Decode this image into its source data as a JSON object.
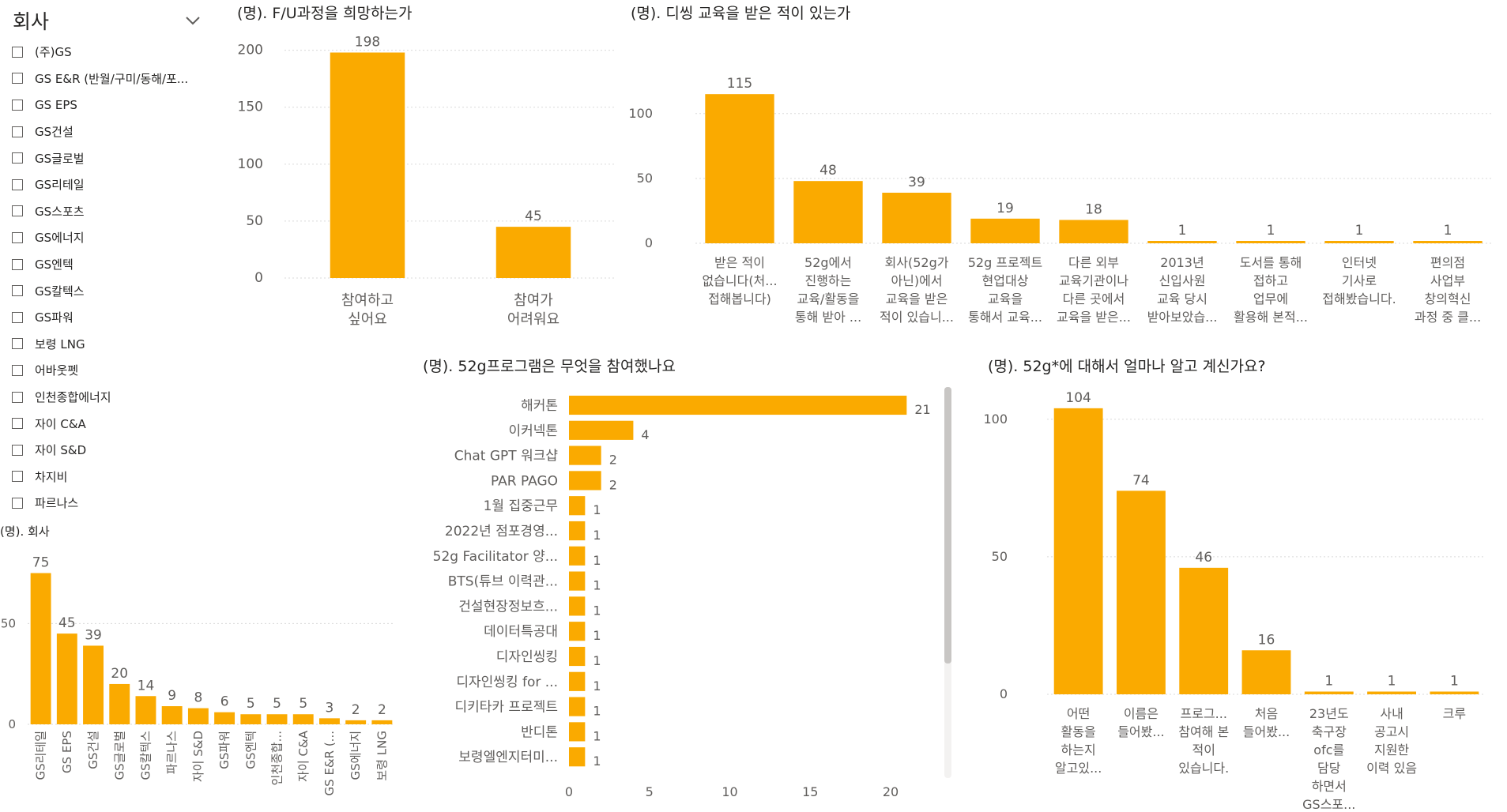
{
  "slicer": {
    "title": "회사",
    "items": [
      "(주)GS",
      "GS E&R (반월/구미/동해/포...",
      "GS EPS",
      "GS건설",
      "GS글로벌",
      "GS리테일",
      "GS스포츠",
      "GS에너지",
      "GS엔텍",
      "GS칼텍스",
      "GS파워",
      "보령 LNG",
      "어바웃펫",
      "인천종합에너지",
      "자이 C&A",
      "자이 S&D",
      "차지비",
      "파르나스"
    ]
  },
  "colors": {
    "bar": "#FAAA00",
    "grid": "#dadada",
    "text": "#605e5c"
  },
  "chart_data": [
    {
      "id": "fu",
      "title": "(명). F/U과정을 희망하는가",
      "type": "bar",
      "categories": [
        [
          "참여하고",
          "싶어요"
        ],
        [
          "참여가",
          "어려워요"
        ]
      ],
      "values": [
        198,
        45
      ],
      "yticks": [
        0,
        50,
        100,
        150,
        200
      ]
    },
    {
      "id": "dsing",
      "title": "(명). 디씽 교육을 받은 적이 있는가",
      "type": "bar",
      "categories": [
        [
          "받은 적이",
          "없습니다(처...",
          "접해봅니다)"
        ],
        [
          "52g에서",
          "진행하는",
          "교육/활동을",
          "통해 받아 ..."
        ],
        [
          "회사(52g가",
          "아닌)에서",
          "교육을 받은",
          "적이 있습니..."
        ],
        [
          "52g 프로젝트",
          "현업대상",
          "교육을",
          "통해서 교육..."
        ],
        [
          "다른 외부",
          "교육기관이나",
          "다른 곳에서",
          "교육을 받은..."
        ],
        [
          "2013년",
          "신입사원",
          "교육 당시",
          "받아보았습..."
        ],
        [
          "도서를 통해",
          "접하고",
          "업무에",
          "활용해 본적..."
        ],
        [
          "인터넷",
          "기사로",
          "접해봤습니다."
        ],
        [
          "편의점",
          "사업부",
          "창의혁신",
          "과정 중 클..."
        ]
      ],
      "values": [
        115,
        48,
        39,
        19,
        18,
        1,
        1,
        1,
        1
      ],
      "yticks": [
        0,
        50,
        100
      ]
    },
    {
      "id": "company",
      "title": "(명). 회사",
      "type": "bar",
      "categories": [
        "GS리테일",
        "GS EPS",
        "GS건설",
        "GS글로벌",
        "GS칼텍스",
        "파르나스",
        "자이 S&D",
        "GS파워",
        "GS엔텍",
        "인천종합...",
        "자이 C&A",
        "GS E&R (...",
        "GS에너지",
        "보령 LNG"
      ],
      "values": [
        75,
        45,
        39,
        20,
        14,
        9,
        8,
        6,
        5,
        5,
        5,
        3,
        2,
        2
      ],
      "yticks": [
        0,
        50
      ]
    },
    {
      "id": "program",
      "title": "(명). 52g프로그램은 무엇을 참여했나요",
      "type": "bar",
      "orientation": "horizontal",
      "categories": [
        "해커톤",
        "이커넥톤",
        "Chat GPT 워크샵",
        "PAR PAGO",
        "1월 집중근무",
        "2022년 점포경영...",
        "52g Facilitator 양...",
        "BTS(튜브 이력관...",
        "건설현장정보흐...",
        "데이터특공대",
        "디자인씽킹",
        "디자인씽킹 for ...",
        "디키타카 프로젝트",
        "반디톤",
        "보령엘엔지터미..."
      ],
      "values": [
        21,
        4,
        2,
        2,
        1,
        1,
        1,
        1,
        1,
        1,
        1,
        1,
        1,
        1,
        1
      ],
      "xticks": [
        0,
        5,
        10,
        15,
        20
      ]
    },
    {
      "id": "know",
      "title": "(명). 52g*에 대해서 얼마나 알고 계신가요?",
      "type": "bar",
      "categories": [
        [
          "어떤",
          "활동을",
          "하는지",
          "알고있..."
        ],
        [
          "이름은",
          "들어봤..."
        ],
        [
          "프로그...",
          "참여해 본",
          "적이",
          "있습니다."
        ],
        [
          "처음",
          "들어봤..."
        ],
        [
          "23년도",
          "축구장",
          "ofc를",
          "담당",
          "하면서",
          "GS스포..."
        ],
        [
          "사내",
          "공고시",
          "지원한",
          "이력 있음"
        ],
        [
          "크루"
        ]
      ],
      "values": [
        104,
        74,
        46,
        16,
        1,
        1,
        1
      ],
      "yticks": [
        0,
        50,
        100
      ]
    }
  ]
}
